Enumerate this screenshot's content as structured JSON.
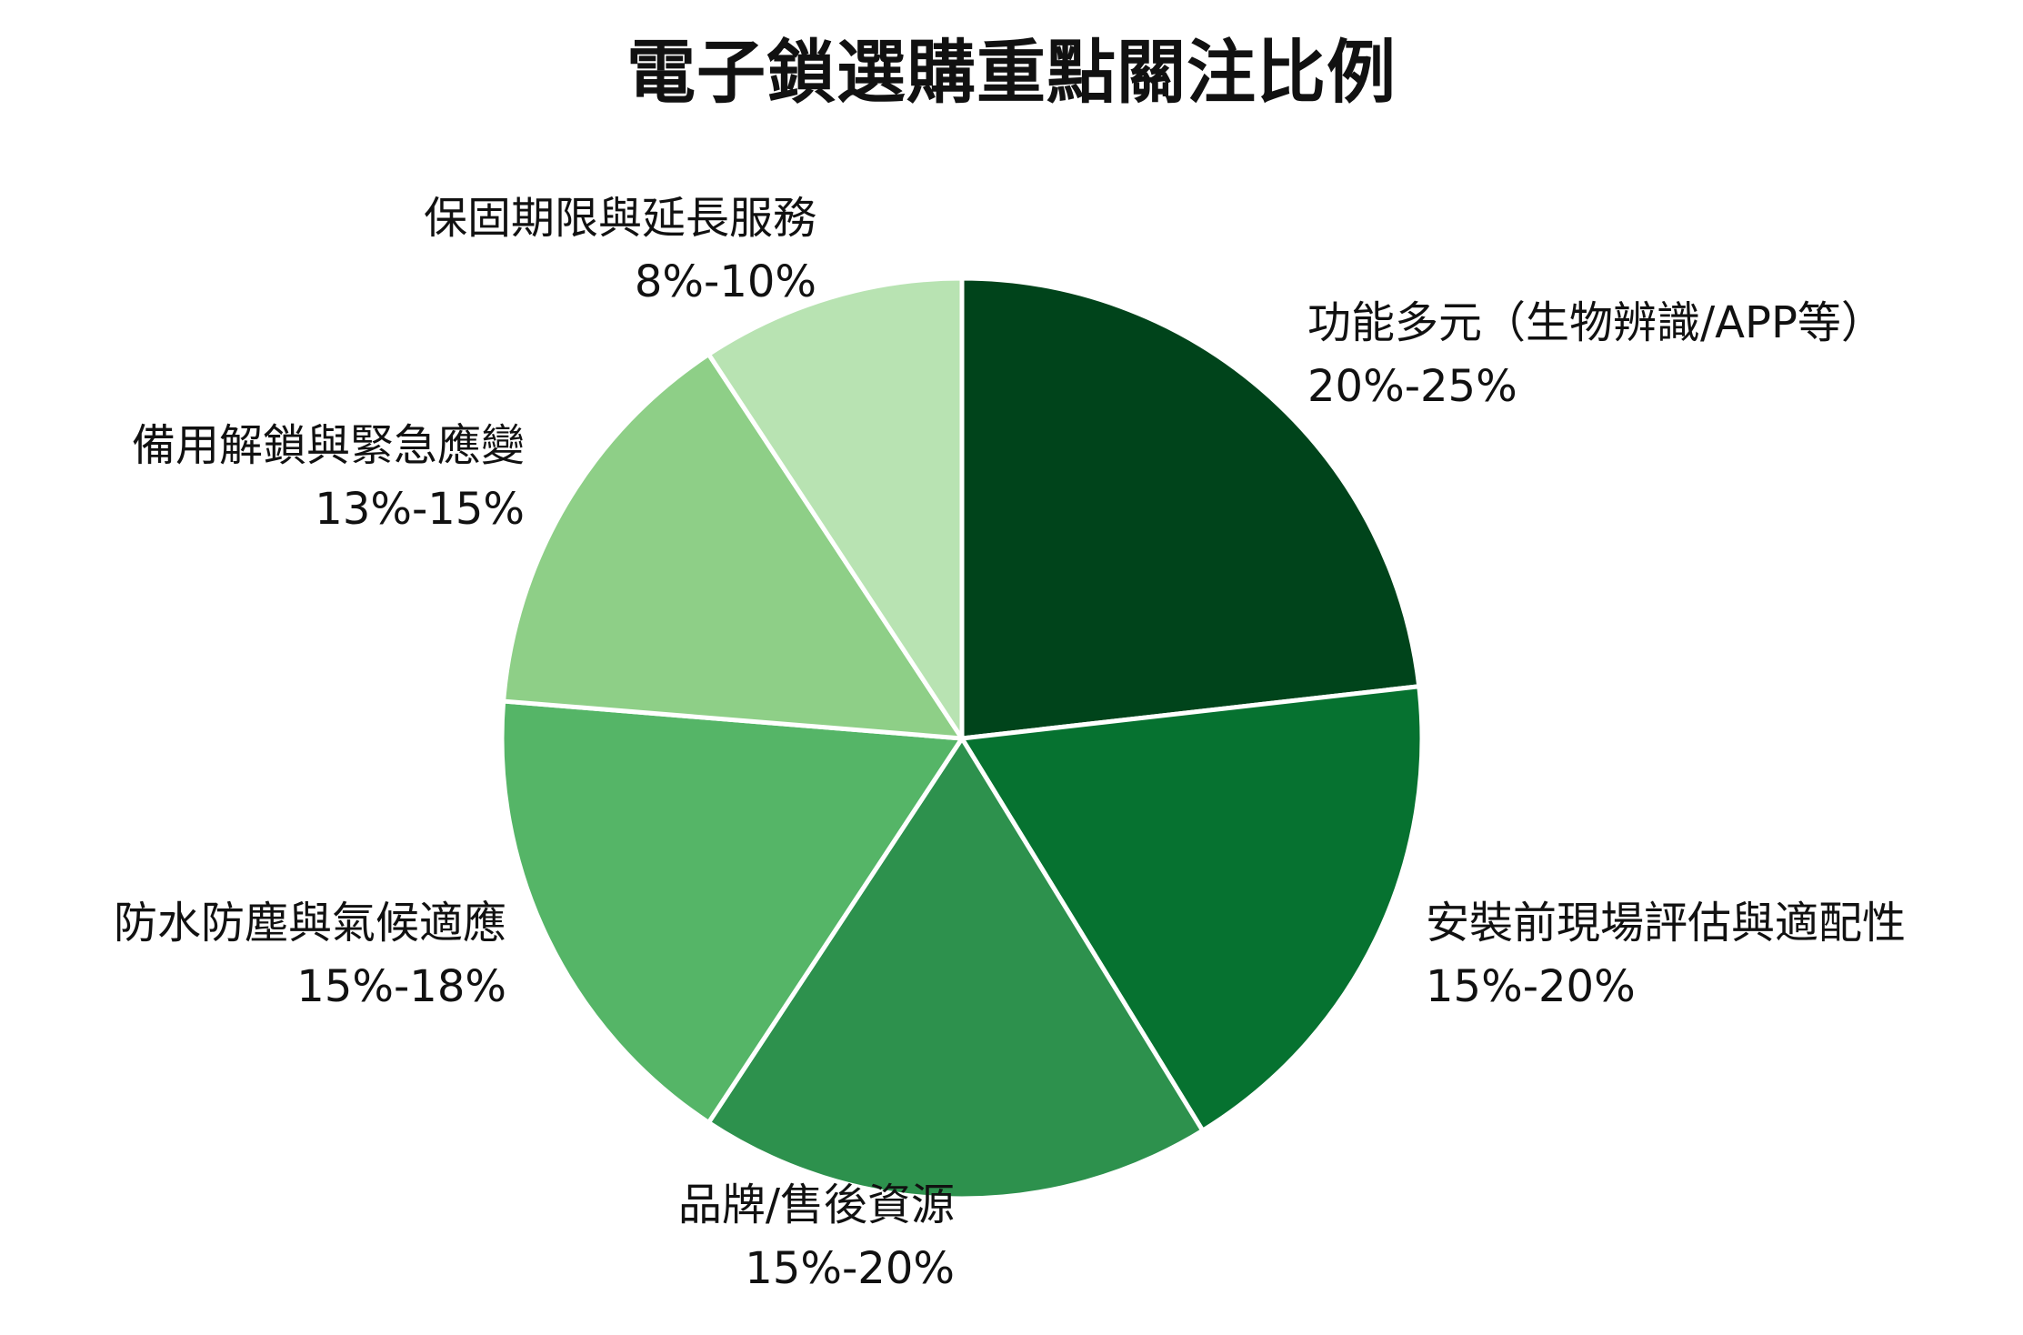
{
  "chart_data": {
    "type": "pie",
    "title": "電子鎖選購重點關注比例",
    "start_angle_deg": 90,
    "direction": "clockwise",
    "slice_border_color": "#ffffff",
    "slices": [
      {
        "label": "功能多元（生物辨識/APP等）",
        "range": "20%-25%",
        "share": 22.5,
        "color": "#00441b"
      },
      {
        "label": "安裝前現場評估與適配性",
        "range": "15%-20%",
        "share": 17.5,
        "color": "#067230"
      },
      {
        "label": "品牌/售後資源",
        "range": "15%-20%",
        "share": 17.5,
        "color": "#2d914d"
      },
      {
        "label": "防水防塵與氣候適應",
        "range": "15%-18%",
        "share": 16.5,
        "color": "#55b567"
      },
      {
        "label": "備用解鎖與緊急應變",
        "range": "13%-15%",
        "share": 14.0,
        "color": "#8ecf87"
      },
      {
        "label": "保固期限與延長服務",
        "range": "8%-10%",
        "share": 9.0,
        "color": "#b8e3b2"
      }
    ]
  }
}
